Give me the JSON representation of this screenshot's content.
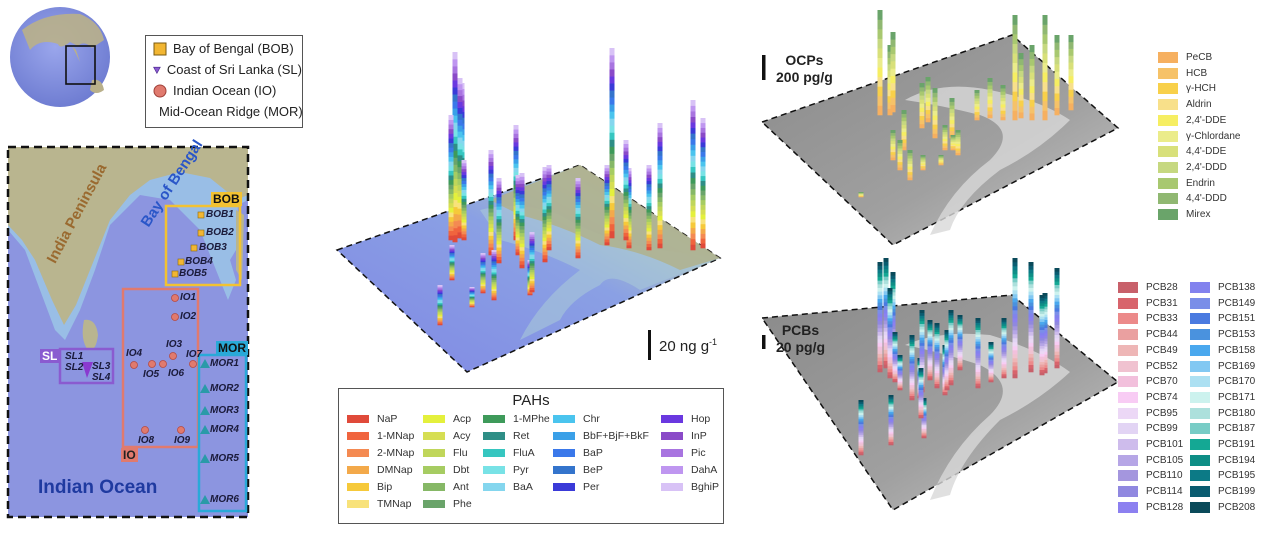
{
  "site_legend": [
    {
      "label": "Bay of Bengal (BOB)",
      "symbol": "square",
      "color": "#f2b632"
    },
    {
      "label": "Coast of Sri Lanka (SL)",
      "symbol": "triangle-down",
      "color": "#8a5bd0"
    },
    {
      "label": "Indian Ocean (IO)",
      "symbol": "circle",
      "color": "#e07a6e"
    },
    {
      "label": "Mid-Ocean Ridge (MOR)",
      "symbol": "triangle-up",
      "color": "#2a9aa8"
    }
  ],
  "map": {
    "land_labels": {
      "india": "India Peninsula",
      "bay": "Bay of Bengal",
      "ocean": "Indian Ocean"
    },
    "regions": {
      "bob": "BOB",
      "io": "IO",
      "sl": "SL",
      "mor": "MOR"
    },
    "sites": {
      "bob": [
        "BOB1",
        "BOB2",
        "BOB3",
        "BOB4",
        "BOB5"
      ],
      "io": [
        "IO1",
        "IO2",
        "IO3",
        "IO4",
        "IO5",
        "IO6",
        "IO7",
        "IO8",
        "IO9"
      ],
      "sl": [
        "SL1",
        "SL2",
        "SL3",
        "SL4"
      ],
      "mor": [
        "MOR1",
        "MOR2",
        "MOR3",
        "MOR4",
        "MOR5",
        "MOR6"
      ]
    },
    "colors": {
      "bob": "#f2c232",
      "io": "#e07a6e",
      "sl": "#8a5bd0",
      "mor": "#29a9d8",
      "ocean": "#8c95e0",
      "land": "#b9b58f"
    }
  },
  "pah": {
    "scale_label": "20 ng g",
    "scale_sup": "-1",
    "legend_title": "PAHs",
    "legend": [
      [
        {
          "name": "NaP",
          "color": "#e04a3a"
        },
        {
          "name": "1-MNap",
          "color": "#f0643e"
        },
        {
          "name": "2-MNap",
          "color": "#f48a52"
        },
        {
          "name": "DMNap",
          "color": "#f3a94a"
        },
        {
          "name": "Bip",
          "color": "#f6c93a"
        },
        {
          "name": "TMNap",
          "color": "#f8e27a"
        }
      ],
      [
        {
          "name": "Acp",
          "color": "#e4f03c"
        },
        {
          "name": "Acy",
          "color": "#d6de52"
        },
        {
          "name": "Flu",
          "color": "#c0d65a"
        },
        {
          "name": "Dbt",
          "color": "#a6cc62"
        },
        {
          "name": "Ant",
          "color": "#86b866"
        },
        {
          "name": "Phe",
          "color": "#6aa46a"
        }
      ],
      [
        {
          "name": "1-MPhe",
          "color": "#3e9a5a"
        },
        {
          "name": "Ret",
          "color": "#2e8e86"
        },
        {
          "name": "FluA",
          "color": "#36c6c0"
        },
        {
          "name": "Pyr",
          "color": "#78e2e6"
        },
        {
          "name": "BaA",
          "color": "#84d6ee"
        }
      ],
      [
        {
          "name": "Chr",
          "color": "#4ac4ee"
        },
        {
          "name": "BbF+BjF+BkF",
          "color": "#3aa0e8"
        },
        {
          "name": "BaP",
          "color": "#3a78ea"
        },
        {
          "name": "BeP",
          "color": "#3474cc"
        },
        {
          "name": "Per",
          "color": "#3a3ad8"
        }
      ],
      [
        {
          "name": "Hop",
          "color": "#6a38e0"
        },
        {
          "name": "InP",
          "color": "#8a4ac8"
        },
        {
          "name": "Pic",
          "color": "#a874e0"
        },
        {
          "name": "DahA",
          "color": "#bf96f0"
        },
        {
          "name": "BghiP",
          "color": "#d8c2f6"
        }
      ]
    ]
  },
  "ocp": {
    "title": "OCPs",
    "scale_label": "200 pg/g",
    "legend": [
      {
        "name": "PeCB",
        "color": "#f6b060"
      },
      {
        "name": "HCB",
        "color": "#f6c268"
      },
      {
        "name": "γ-HCH",
        "color": "#f8d04a"
      },
      {
        "name": "Aldrin",
        "color": "#f8e08a"
      },
      {
        "name": "2,4'-DDE",
        "color": "#f6ee62"
      },
      {
        "name": "γ-Chlordane",
        "color": "#ebec8a"
      },
      {
        "name": "4,4'-DDE",
        "color": "#d8e07a"
      },
      {
        "name": "2,4'-DDD",
        "color": "#c6d880"
      },
      {
        "name": "Endrin",
        "color": "#a8c870"
      },
      {
        "name": "4,4'-DDD",
        "color": "#90b872"
      },
      {
        "name": "Mirex",
        "color": "#6aa46a"
      }
    ]
  },
  "pcb": {
    "title": "PCBs",
    "scale_label": "20 pg/g",
    "legend": [
      [
        {
          "name": "PCB28",
          "color": "#c8606a"
        },
        {
          "name": "PCB31",
          "color": "#d8646c"
        },
        {
          "name": "PCB33",
          "color": "#ec8a8a"
        },
        {
          "name": "PCB44",
          "color": "#eaa0a0"
        },
        {
          "name": "PCB49",
          "color": "#eeb6b6"
        },
        {
          "name": "PCB52",
          "color": "#f0c2d0"
        },
        {
          "name": "PCB70",
          "color": "#f2c0dc"
        },
        {
          "name": "PCB74",
          "color": "#f8ccf4"
        },
        {
          "name": "PCB95",
          "color": "#ecd8f6"
        },
        {
          "name": "PCB99",
          "color": "#e2d4f4"
        },
        {
          "name": "PCB101",
          "color": "#cebcec"
        },
        {
          "name": "PCB105",
          "color": "#b6a6e6"
        },
        {
          "name": "PCB110",
          "color": "#a496de"
        },
        {
          "name": "PCB114",
          "color": "#9088e0"
        },
        {
          "name": "PCB128",
          "color": "#8c80f0"
        }
      ],
      [
        {
          "name": "PCB138",
          "color": "#8282ee"
        },
        {
          "name": "PCB149",
          "color": "#7a8ee8"
        },
        {
          "name": "PCB151",
          "color": "#4a7ae0"
        },
        {
          "name": "PCB153",
          "color": "#4a92de"
        },
        {
          "name": "PCB158",
          "color": "#4aa8ee"
        },
        {
          "name": "PCB169",
          "color": "#82c8f2"
        },
        {
          "name": "PCB170",
          "color": "#ace0f2"
        },
        {
          "name": "PCB171",
          "color": "#ccf2ee"
        },
        {
          "name": "PCB180",
          "color": "#ace0dc"
        },
        {
          "name": "PCB187",
          "color": "#78ccc6"
        },
        {
          "name": "PCB191",
          "color": "#14a894"
        },
        {
          "name": "PCB194",
          "color": "#0e8e86"
        },
        {
          "name": "PCB195",
          "color": "#0c7a86"
        },
        {
          "name": "PCB199",
          "color": "#0a5c70"
        },
        {
          "name": "PCB208",
          "color": "#0a4a5a"
        }
      ]
    ]
  }
}
